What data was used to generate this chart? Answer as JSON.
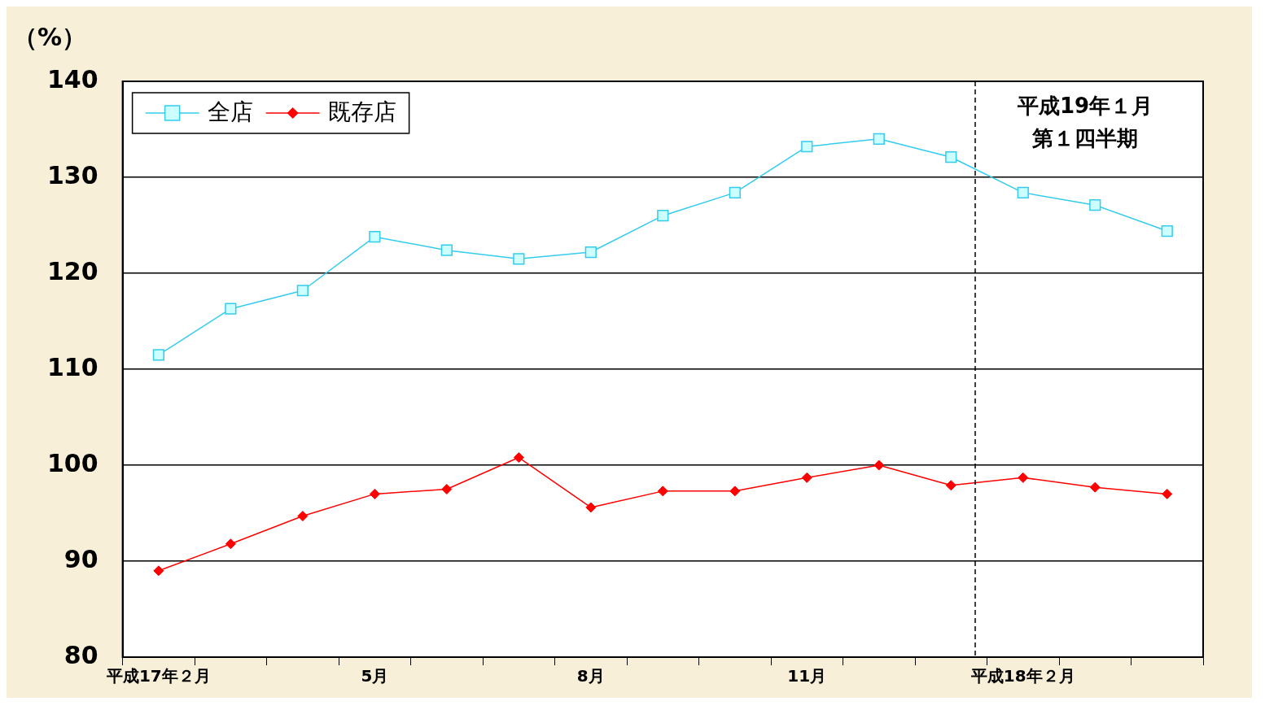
{
  "chart_data": {
    "type": "line",
    "ylabel": "（%）",
    "categories": [
      "平成17年２月",
      null,
      null,
      "5月",
      null,
      null,
      "8月",
      null,
      null,
      "11月",
      null,
      null,
      "平成18年２月",
      null,
      null
    ],
    "series": [
      {
        "name": "全店",
        "color": "#33ccee",
        "marker": "square",
        "values": [
          111.5,
          116.3,
          118.2,
          123.8,
          122.4,
          121.5,
          122.2,
          126.0,
          128.4,
          133.2,
          134.0,
          132.1,
          128.4,
          127.1,
          124.4
        ]
      },
      {
        "name": "既存店",
        "color": "#ff0000",
        "marker": "diamond",
        "values": [
          89.0,
          91.8,
          94.7,
          97.0,
          97.5,
          100.8,
          95.6,
          97.3,
          97.3,
          98.7,
          100.0,
          97.9,
          98.7,
          97.7,
          97.0
        ]
      }
    ],
    "ylim": [
      80,
      140
    ],
    "yticks": [
      80,
      90,
      100,
      110,
      120,
      130,
      140
    ],
    "grid": "y",
    "legend": "top left",
    "line_style": "solid",
    "annotations": [
      "平成19年１月",
      "第１四半期"
    ]
  }
}
